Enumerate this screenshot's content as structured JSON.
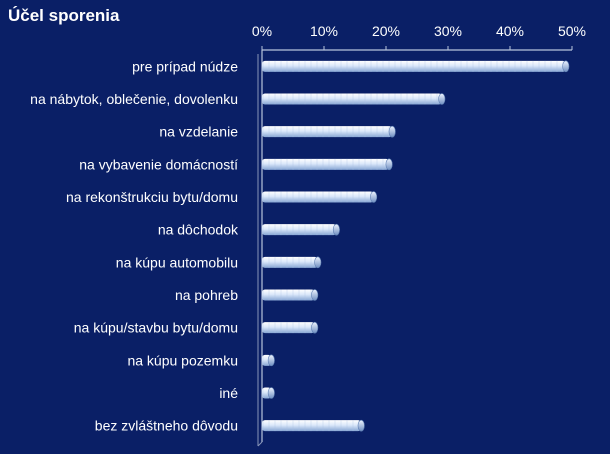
{
  "chart_data": {
    "type": "bar",
    "orientation": "horizontal",
    "title": "Účel sporenia",
    "xlabel": "",
    "ylabel": "",
    "xlim": [
      0,
      50
    ],
    "x_ticks": [
      "0%",
      "10%",
      "20%",
      "30%",
      "40%",
      "50%"
    ],
    "x_axis_position": "top",
    "grid": false,
    "categories": [
      "pre prípad núdze",
      "na nábytok, oblečenie, dovolenku",
      "na vzdelanie",
      "na vybavenie domácností",
      "na rekonštrukciu bytu/domu",
      "na dôchodok",
      "na kúpu automobilu",
      "na pohreb",
      "na kúpu/stavbu bytu/domu",
      "na kúpu pozemku",
      "iné",
      "bez zvláštneho dôvodu"
    ],
    "values": [
      49,
      29,
      21,
      20.5,
      18,
      12,
      9,
      8.5,
      8.5,
      1.5,
      1.5,
      16
    ],
    "colors": {
      "background": "#0a1f66",
      "bar_light": "#ffffff",
      "bar_mid": "#c9dcf6",
      "bar_dark": "#7f9fcf",
      "axis": "#b8c4dc",
      "text": "#ffffff"
    }
  }
}
